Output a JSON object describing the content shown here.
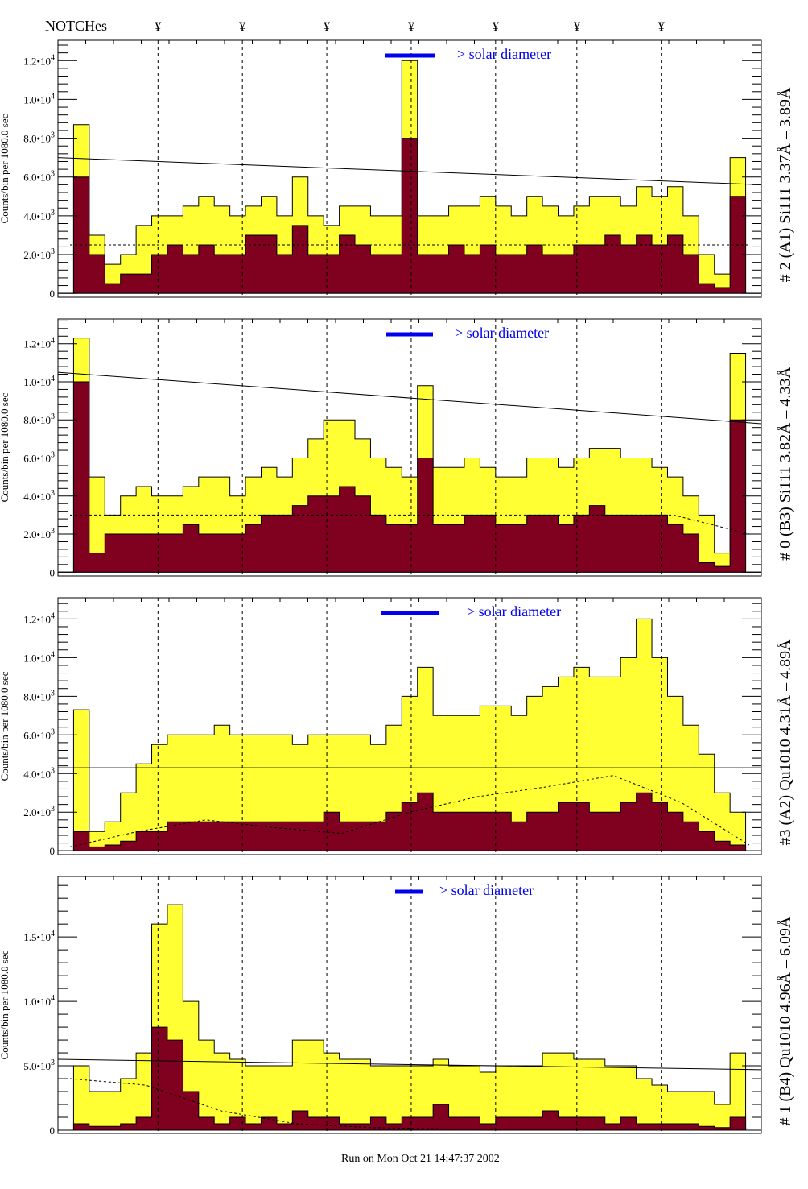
{
  "header": {
    "notches_label": "NOTCHes",
    "notch_symbol": "¥"
  },
  "footer": {
    "run_text": "Run on Mon Oct 21 14:47:37 2002"
  },
  "colors": {
    "total": "#ffff33",
    "selected": "#800020",
    "legend_bar": "#0000ee",
    "legend_text": "#0000ee"
  },
  "chart_data": {
    "type": "bar",
    "subtype": "step-histogram-stacked-panels",
    "x_domain": [
      0,
      45
    ],
    "notch_positions": [
      6.4,
      11.8,
      17.2,
      22.6,
      28.0,
      33.2,
      38.6
    ],
    "ylabel": "Counts/bin per    1080.0 sec",
    "panels": [
      {
        "title": "# 2 (A1) Si111  3.37Å – 3.89Å",
        "legend": "> solar diameter",
        "ylim": [
          -200,
          13050
        ],
        "yticks": [
          {
            "v": 0,
            "m": "0",
            "e": ""
          },
          {
            "v": 2000,
            "m": "2.0•10",
            "e": "3"
          },
          {
            "v": 4000,
            "m": "4.0•10",
            "e": "3"
          },
          {
            "v": 6000,
            "m": "6.0•10",
            "e": "3"
          },
          {
            "v": 8000,
            "m": "8.0•10",
            "e": "3"
          },
          {
            "v": 10000,
            "m": "1.0•10",
            "e": "4"
          },
          {
            "v": 12000,
            "m": "1.2•10",
            "e": "4"
          }
        ],
        "total": [
          0,
          8.7,
          3,
          1.5,
          2,
          3.5,
          4,
          4,
          4.5,
          5,
          4.5,
          4,
          4.5,
          5,
          4,
          6,
          4,
          3.5,
          4.5,
          4.5,
          4,
          4,
          12,
          4,
          4,
          4.5,
          4.5,
          5,
          4.5,
          4,
          5,
          4.5,
          4,
          4.5,
          5,
          5,
          4.5,
          5.5,
          5,
          5.5,
          4,
          2,
          1,
          7,
          0
        ],
        "selected": [
          0,
          6,
          2,
          0.5,
          1,
          1,
          2,
          2.5,
          2,
          2.5,
          2,
          2,
          3,
          3,
          2,
          3.5,
          2,
          2,
          3,
          2.5,
          2,
          2,
          8,
          2,
          2,
          2.5,
          2,
          2.5,
          2,
          2,
          2.5,
          2,
          2,
          2.5,
          2.5,
          3,
          2.5,
          3,
          2.5,
          3,
          2,
          0.5,
          0.3,
          5,
          0
        ],
        "fit_line": [
          7000,
          5600
        ],
        "dashed_level": [
          2500,
          2500,
          2500,
          2500,
          2500,
          2500,
          2500,
          2500,
          2500,
          2500
        ]
      },
      {
        "title": "# 0 (B3) Si111  3.82Å – 4.33Å",
        "legend": "> solar diameter",
        "ylim": [
          -200,
          13300
        ],
        "yticks": [
          {
            "v": 0,
            "m": "0",
            "e": ""
          },
          {
            "v": 2000,
            "m": "2.0•10",
            "e": "3"
          },
          {
            "v": 4000,
            "m": "4.0•10",
            "e": "3"
          },
          {
            "v": 6000,
            "m": "6.0•10",
            "e": "3"
          },
          {
            "v": 8000,
            "m": "8.0•10",
            "e": "3"
          },
          {
            "v": 10000,
            "m": "1.0•10",
            "e": "4"
          },
          {
            "v": 12000,
            "m": "1.2•10",
            "e": "4"
          }
        ],
        "total": [
          0,
          12.3,
          5,
          3,
          4,
          4.5,
          4,
          4,
          4.5,
          5,
          5,
          4,
          5,
          5.5,
          5,
          6,
          7,
          8,
          8,
          7,
          6,
          5.5,
          5,
          9.8,
          5.5,
          5.5,
          6,
          5.5,
          5,
          5,
          6,
          6,
          5.5,
          6,
          6.5,
          6.5,
          6,
          6,
          5.5,
          5,
          4,
          3,
          1,
          11.5,
          0
        ],
        "selected": [
          0,
          10,
          1,
          2,
          2,
          2,
          2,
          2,
          2.5,
          2,
          2,
          2,
          2.5,
          3,
          3,
          3.5,
          4,
          4,
          4.5,
          4,
          3,
          2.5,
          2.5,
          6,
          2.5,
          2.5,
          3,
          3,
          2.5,
          2.5,
          3,
          3,
          2.5,
          3,
          3.5,
          3,
          3,
          3,
          3,
          2.5,
          2,
          0.5,
          0.3,
          8,
          0
        ],
        "fit_line": [
          10500,
          7800
        ],
        "dashed_level": [
          3000,
          3000,
          3000,
          3000,
          3000,
          3000,
          3000,
          3000,
          3000,
          2000
        ]
      },
      {
        "title": "#3 (A2) Qu1010  4.31Å – 4.89Å",
        "legend": "> solar diameter",
        "ylim": [
          -200,
          13100
        ],
        "yticks": [
          {
            "v": 0,
            "m": "0",
            "e": ""
          },
          {
            "v": 2000,
            "m": "2.0•10",
            "e": "3"
          },
          {
            "v": 4000,
            "m": "4.0•10",
            "e": "3"
          },
          {
            "v": 6000,
            "m": "6.0•10",
            "e": "3"
          },
          {
            "v": 8000,
            "m": "8.0•10",
            "e": "3"
          },
          {
            "v": 10000,
            "m": "1.0•10",
            "e": "4"
          },
          {
            "v": 12000,
            "m": "1.2•10",
            "e": "4"
          }
        ],
        "total": [
          0,
          7.3,
          1,
          1.5,
          3,
          4.5,
          5.5,
          6,
          6,
          6,
          6.5,
          6,
          6,
          6,
          6,
          5.5,
          6,
          6,
          6,
          6,
          5.5,
          6.5,
          8,
          9.5,
          7,
          7,
          7,
          7.5,
          7.5,
          7,
          8,
          8.5,
          9,
          9.5,
          9,
          9,
          10,
          12,
          10,
          8,
          6.5,
          5,
          3,
          2,
          0
        ],
        "selected": [
          0,
          1,
          0.2,
          0.3,
          0.5,
          1,
          1,
          1.5,
          1.5,
          1.5,
          1.5,
          1.5,
          1.5,
          1.5,
          1.5,
          1.5,
          1.5,
          2,
          1.5,
          1.5,
          1.5,
          2,
          2.5,
          3,
          2,
          2,
          2,
          2,
          2,
          1.5,
          2,
          2,
          2.5,
          2.5,
          2,
          2,
          2.5,
          3,
          2.5,
          2,
          1.5,
          1,
          0.5,
          0.3,
          0
        ],
        "fit_line": [
          4300,
          4300
        ],
        "dashed_level": [
          200,
          1000,
          1600,
          1200,
          900,
          2000,
          2800,
          3300,
          3900,
          2500,
          300
        ]
      },
      {
        "title": "# 1 (B4) Qu1010 4.96Å – 6.09Å",
        "legend": "> solar diameter",
        "ylim": [
          -250,
          19700
        ],
        "yticks": [
          {
            "v": 0,
            "m": "0",
            "e": ""
          },
          {
            "v": 5000,
            "m": "5.0•10",
            "e": "3"
          },
          {
            "v": 10000,
            "m": "1.0•10",
            "e": "4"
          },
          {
            "v": 15000,
            "m": "1.5•10",
            "e": "4"
          }
        ],
        "total": [
          0,
          5,
          3,
          3,
          4,
          6,
          16,
          17.5,
          10,
          7,
          6,
          5.5,
          5,
          5,
          5,
          7,
          7,
          6,
          5.5,
          5.5,
          5,
          5,
          5,
          5,
          5.5,
          5,
          5,
          4.5,
          5,
          5,
          5,
          6,
          6,
          5.5,
          5.5,
          5,
          5,
          4,
          3.5,
          3,
          3,
          3,
          2,
          6,
          0
        ],
        "selected": [
          0,
          0.5,
          0.3,
          0.3,
          0.5,
          1,
          8,
          7,
          3,
          1,
          0.5,
          1,
          0.5,
          1,
          0.5,
          1.5,
          1,
          1,
          0.5,
          0.5,
          1,
          0.5,
          1,
          1,
          2,
          1,
          1,
          0.5,
          1,
          1,
          1,
          1.5,
          1,
          1,
          1,
          0.5,
          1,
          0.5,
          0.5,
          0.5,
          0.5,
          0.3,
          0.2,
          1,
          0
        ],
        "fit_line": [
          5500,
          4700
        ],
        "dashed_level": [
          4000,
          3500,
          1500,
          500,
          200,
          100,
          100,
          100,
          100,
          100
        ]
      }
    ]
  }
}
